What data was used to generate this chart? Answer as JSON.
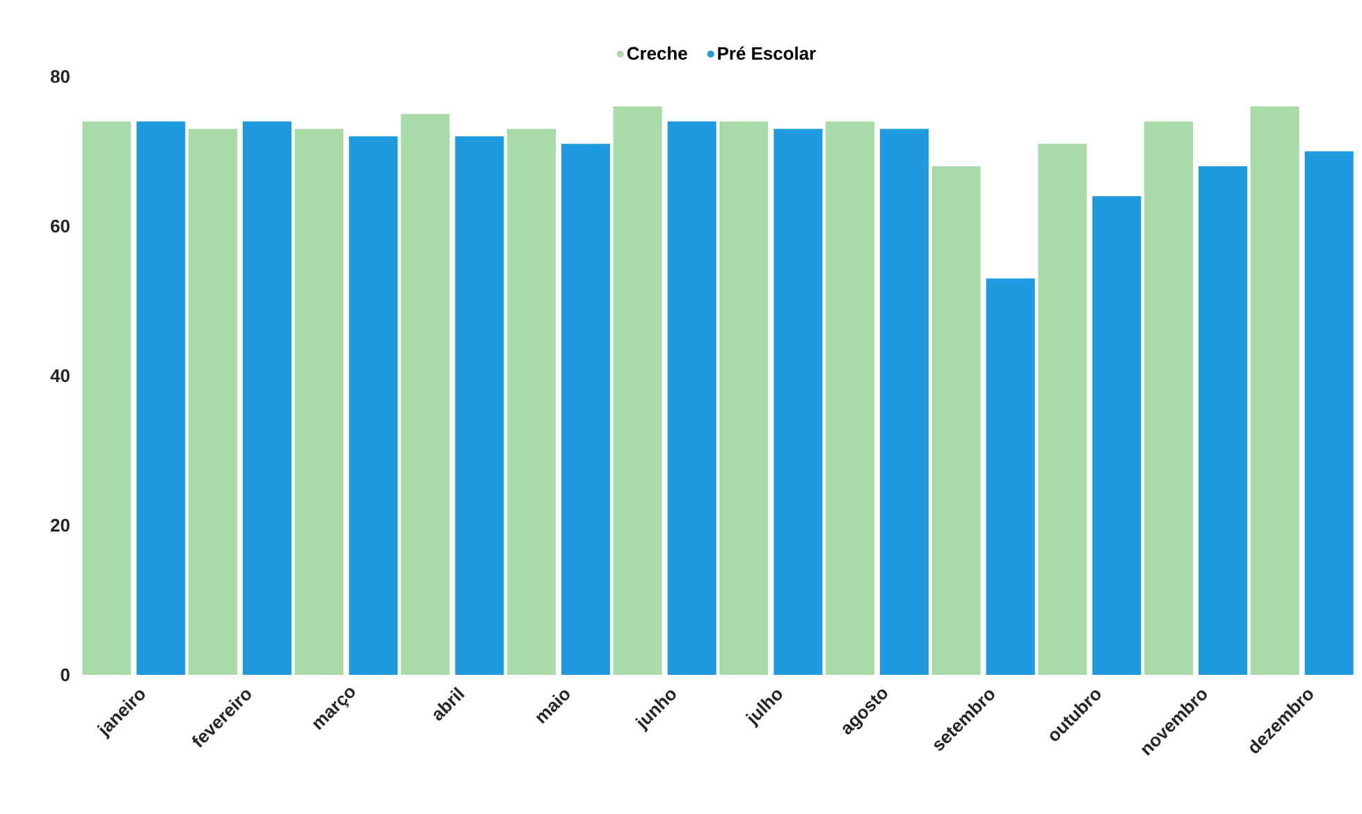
{
  "chart_data": {
    "type": "bar",
    "categories": [
      "janeiro",
      "fevereiro",
      "março",
      "abril",
      "maio",
      "junho",
      "julho",
      "agosto",
      "setembro",
      "outubro",
      "novembro",
      "dezembro"
    ],
    "series": [
      {
        "name": "Creche",
        "color": "#a8dba8",
        "values": [
          74,
          73,
          73,
          75,
          73,
          76,
          74,
          74,
          68,
          71,
          74,
          76
        ]
      },
      {
        "name": "Pré Escolar",
        "color": "#1e9be0",
        "values": [
          74,
          74,
          72,
          72,
          71,
          74,
          73,
          73,
          53,
          64,
          68,
          70
        ]
      }
    ],
    "ylim": [
      0,
      80
    ],
    "yticks": [
      0,
      20,
      40,
      60,
      80
    ],
    "grid": false,
    "legend": "top"
  }
}
